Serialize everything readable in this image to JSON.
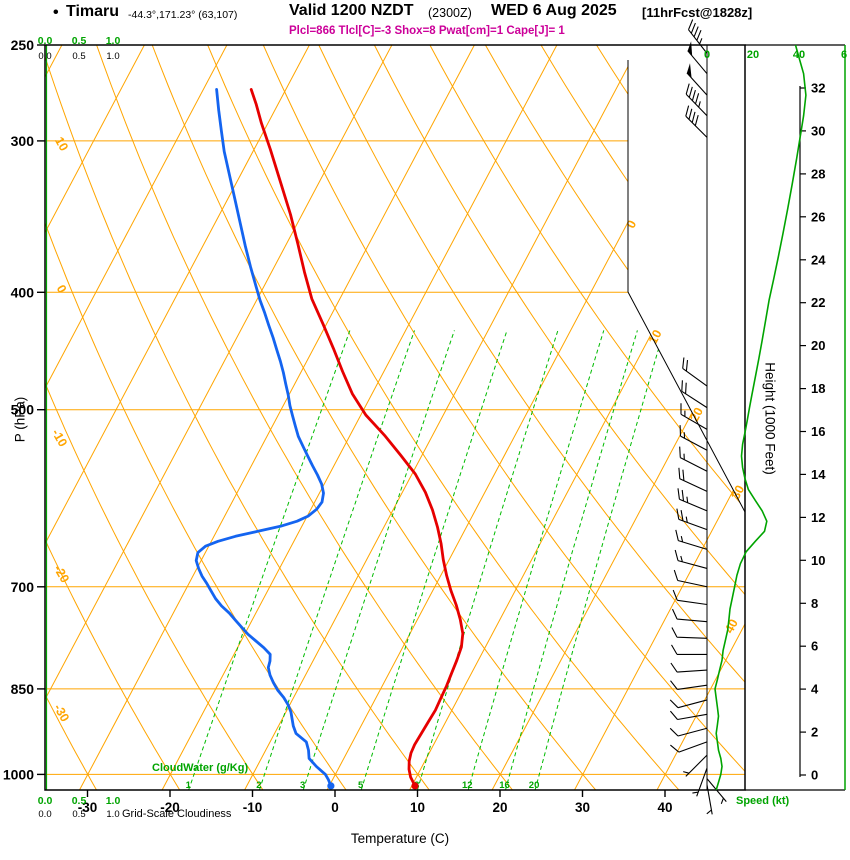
{
  "title": {
    "bullet": "•",
    "station": "Timaru",
    "coords": "-44.3°,171.23° (63,107)",
    "valid": "Valid 1200 NZDT",
    "valid_z": "(2300Z)",
    "date": "WED 6 Aug 2025",
    "fcst": "[11hrFcst@1828z]",
    "indices": "Plcl=866 Tlcl[C]=-3 Shox=8 Pwat[cm]=1 Cape[J]= 1"
  },
  "chart_data": {
    "type": "skewt-log-p-sounding",
    "axes": {
      "pressure_label": "P (hPa)",
      "temp_label": "Temperature (C)",
      "height_label": "Height (1000 Feet)",
      "speed_label": "Speed (kt)",
      "cloudwater_label": "CloudWater (g/Kg)",
      "cloudiness_label": "Grid-Scale Cloudiness",
      "pressure_ticks": [
        250,
        300,
        400,
        500,
        700,
        850,
        1000
      ],
      "temp_ticks": [
        -30,
        -20,
        -10,
        0,
        10,
        20,
        30,
        40
      ],
      "height_ticks": [
        0,
        2,
        4,
        6,
        8,
        10,
        12,
        14,
        16,
        18,
        20,
        22,
        24,
        26,
        28,
        30,
        32
      ],
      "cloud_scale": [
        "0.0",
        "0.5",
        "1.0"
      ],
      "speed_scale_labels": [
        "0",
        "20",
        "40",
        "6"
      ],
      "temp_range_c": [
        -30,
        40
      ],
      "pressure_range_hpa": [
        250,
        1000
      ]
    },
    "grid": {
      "isotherm_labels": [
        0,
        10,
        20,
        30,
        40
      ],
      "dry_adiabat_labels": [
        10,
        0,
        -10,
        -20,
        -30
      ],
      "mixing_ratio_lines_g_kg": [
        1,
        2,
        3,
        5,
        8,
        12,
        16,
        20
      ]
    },
    "colors": {
      "grid_orange": "#ffa500",
      "mixing_green": "#00bb00",
      "temperature_red": "#e60000",
      "dewpoint_blue": "#1464f0",
      "speed_green": "#00a400",
      "indices_magenta": "#cc0099",
      "frame_black": "#000000"
    },
    "temperature_profile_p_c": [
      [
        1022,
        10.4
      ],
      [
        1005,
        9.3
      ],
      [
        990,
        8.6
      ],
      [
        975,
        8.1
      ],
      [
        960,
        7.8
      ],
      [
        945,
        7.7
      ],
      [
        925,
        7.8
      ],
      [
        905,
        7.9
      ],
      [
        885,
        8.0
      ],
      [
        865,
        7.9
      ],
      [
        845,
        7.8
      ],
      [
        825,
        7.6
      ],
      [
        805,
        7.4
      ],
      [
        785,
        7.1
      ],
      [
        765,
        6.4
      ],
      [
        745,
        5.2
      ],
      [
        725,
        3.8
      ],
      [
        705,
        2.2
      ],
      [
        685,
        0.7
      ],
      [
        665,
        -0.7
      ],
      [
        645,
        -2.0
      ],
      [
        625,
        -3.5
      ],
      [
        605,
        -5.2
      ],
      [
        585,
        -7.2
      ],
      [
        565,
        -9.6
      ],
      [
        545,
        -12.6
      ],
      [
        525,
        -15.8
      ],
      [
        505,
        -19.4
      ],
      [
        485,
        -22.4
      ],
      [
        465,
        -25.0
      ],
      [
        445,
        -27.6
      ],
      [
        425,
        -30.4
      ],
      [
        405,
        -33.4
      ],
      [
        385,
        -36.0
      ],
      [
        365,
        -38.6
      ],
      [
        345,
        -41.4
      ],
      [
        325,
        -44.6
      ],
      [
        305,
        -48.0
      ],
      [
        290,
        -50.8
      ],
      [
        280,
        -52.6
      ],
      [
        272,
        -54.2
      ]
    ],
    "dewpoint_profile_p_c": [
      [
        1022,
        0.2
      ],
      [
        1010,
        -0.5
      ],
      [
        1000,
        -1.2
      ],
      [
        985,
        -2.8
      ],
      [
        970,
        -4.2
      ],
      [
        955,
        -4.8
      ],
      [
        940,
        -5.6
      ],
      [
        925,
        -7.4
      ],
      [
        912,
        -8.2
      ],
      [
        900,
        -8.8
      ],
      [
        888,
        -9.4
      ],
      [
        876,
        -10.2
      ],
      [
        864,
        -11.2
      ],
      [
        852,
        -12.4
      ],
      [
        840,
        -13.4
      ],
      [
        828,
        -14.3
      ],
      [
        816,
        -15.0
      ],
      [
        806,
        -15.2
      ],
      [
        796,
        -15.6
      ],
      [
        786,
        -16.8
      ],
      [
        776,
        -18.2
      ],
      [
        766,
        -19.6
      ],
      [
        756,
        -20.8
      ],
      [
        746,
        -22.0
      ],
      [
        736,
        -23.2
      ],
      [
        726,
        -24.6
      ],
      [
        716,
        -25.8
      ],
      [
        706,
        -26.8
      ],
      [
        696,
        -27.8
      ],
      [
        686,
        -28.9
      ],
      [
        676,
        -29.8
      ],
      [
        666,
        -30.6
      ],
      [
        656,
        -30.9
      ],
      [
        648,
        -30.4
      ],
      [
        642,
        -29.2
      ],
      [
        636,
        -27.4
      ],
      [
        630,
        -25.0
      ],
      [
        624,
        -22.6
      ],
      [
        618,
        -20.9
      ],
      [
        612,
        -19.9
      ],
      [
        604,
        -19.3
      ],
      [
        596,
        -19.1
      ],
      [
        586,
        -19.5
      ],
      [
        576,
        -20.3
      ],
      [
        566,
        -21.4
      ],
      [
        556,
        -22.6
      ],
      [
        546,
        -23.8
      ],
      [
        536,
        -25.0
      ],
      [
        526,
        -26.2
      ],
      [
        516,
        -27.2
      ],
      [
        506,
        -28.2
      ],
      [
        496,
        -29.2
      ],
      [
        486,
        -30.1
      ],
      [
        476,
        -31.1
      ],
      [
        466,
        -32.1
      ],
      [
        456,
        -33.2
      ],
      [
        446,
        -34.4
      ],
      [
        436,
        -35.6
      ],
      [
        426,
        -36.9
      ],
      [
        416,
        -38.2
      ],
      [
        406,
        -39.6
      ],
      [
        396,
        -40.9
      ],
      [
        381,
        -42.9
      ],
      [
        366,
        -44.9
      ],
      [
        351,
        -46.9
      ],
      [
        336,
        -49.0
      ],
      [
        321,
        -51.2
      ],
      [
        306,
        -53.5
      ],
      [
        294,
        -55.2
      ],
      [
        283,
        -56.8
      ],
      [
        272,
        -58.4
      ]
    ],
    "wind_profile_p_dir_kt": [
      [
        1020,
        170,
        5
      ],
      [
        1008,
        140,
        5
      ],
      [
        988,
        200,
        7
      ],
      [
        964,
        225,
        7
      ],
      [
        940,
        250,
        8
      ],
      [
        916,
        255,
        8
      ],
      [
        892,
        260,
        9
      ],
      [
        868,
        255,
        10
      ],
      [
        844,
        262,
        10
      ],
      [
        820,
        266,
        12
      ],
      [
        796,
        270,
        12
      ],
      [
        772,
        272,
        11
      ],
      [
        748,
        275,
        10
      ],
      [
        724,
        278,
        11
      ],
      [
        700,
        282,
        12
      ],
      [
        676,
        285,
        14
      ],
      [
        652,
        287,
        17
      ],
      [
        628,
        290,
        23
      ],
      [
        606,
        293,
        25
      ],
      [
        584,
        295,
        20
      ],
      [
        562,
        297,
        17
      ],
      [
        540,
        298,
        16
      ],
      [
        519,
        300,
        17
      ],
      [
        498,
        303,
        18
      ],
      [
        478,
        306,
        20
      ],
      [
        298,
        315,
        40
      ],
      [
        286,
        316,
        45
      ],
      [
        275,
        318,
        50
      ],
      [
        264,
        320,
        50
      ],
      [
        254,
        322,
        45
      ]
    ],
    "speed_profile_p_kt": [
      [
        1030,
        4
      ],
      [
        1015,
        5
      ],
      [
        1000,
        6
      ],
      [
        985,
        6.5
      ],
      [
        970,
        6
      ],
      [
        955,
        5
      ],
      [
        940,
        4.5
      ],
      [
        925,
        4
      ],
      [
        910,
        4.5
      ],
      [
        895,
        5
      ],
      [
        880,
        4.5
      ],
      [
        865,
        4
      ],
      [
        850,
        3.5
      ],
      [
        835,
        4.5
      ],
      [
        820,
        5.5
      ],
      [
        805,
        6.5
      ],
      [
        790,
        7
      ],
      [
        775,
        8
      ],
      [
        760,
        9
      ],
      [
        745,
        9.5
      ],
      [
        730,
        10
      ],
      [
        715,
        11
      ],
      [
        700,
        12
      ],
      [
        685,
        13
      ],
      [
        670,
        14.5
      ],
      [
        655,
        17
      ],
      [
        642,
        21
      ],
      [
        630,
        25
      ],
      [
        618,
        26
      ],
      [
        606,
        24
      ],
      [
        594,
        21
      ],
      [
        582,
        18
      ],
      [
        570,
        16.5
      ],
      [
        558,
        15.5
      ],
      [
        546,
        15
      ],
      [
        534,
        15.5
      ],
      [
        522,
        16.5
      ],
      [
        510,
        17.5
      ],
      [
        498,
        18.5
      ],
      [
        486,
        19.5
      ],
      [
        470,
        21
      ],
      [
        454,
        22.5
      ],
      [
        438,
        24
      ],
      [
        422,
        25.5
      ],
      [
        406,
        27
      ],
      [
        390,
        29
      ],
      [
        374,
        31
      ],
      [
        358,
        33
      ],
      [
        342,
        35
      ],
      [
        326,
        37
      ],
      [
        310,
        39
      ],
      [
        298,
        40.5
      ],
      [
        286,
        42
      ],
      [
        275,
        43
      ],
      [
        264,
        42
      ],
      [
        256,
        40
      ],
      [
        250,
        38.5
      ]
    ]
  }
}
